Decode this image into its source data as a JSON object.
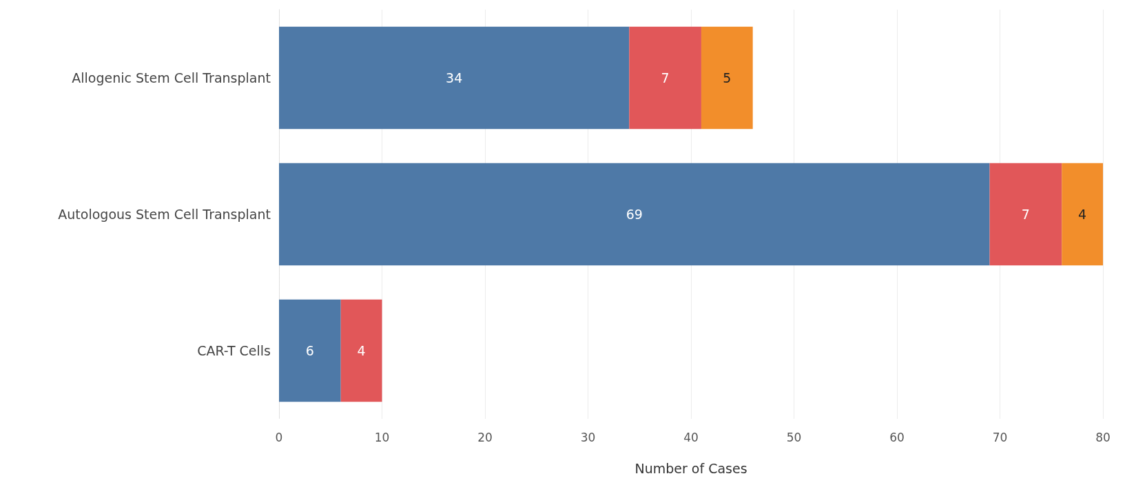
{
  "chart_data": {
    "type": "bar",
    "orientation": "horizontal",
    "stacked": true,
    "xlabel": "Number of Cases",
    "categories": [
      "Allogenic Stem Cell Transplant",
      "Autologous Stem Cell Transplant",
      "CAR-T Cells"
    ],
    "series": [
      {
        "color": "#4e79a7",
        "values": [
          34,
          69,
          6
        ]
      },
      {
        "color": "#e15759",
        "values": [
          7,
          7,
          4
        ]
      },
      {
        "color": "#f28e2b",
        "values": [
          5,
          4,
          null
        ]
      }
    ],
    "xlim": [
      0,
      80
    ],
    "xticks": [
      0,
      10,
      20,
      30,
      40,
      50,
      60,
      70,
      80
    ],
    "grid": "x",
    "data_labels": true
  }
}
